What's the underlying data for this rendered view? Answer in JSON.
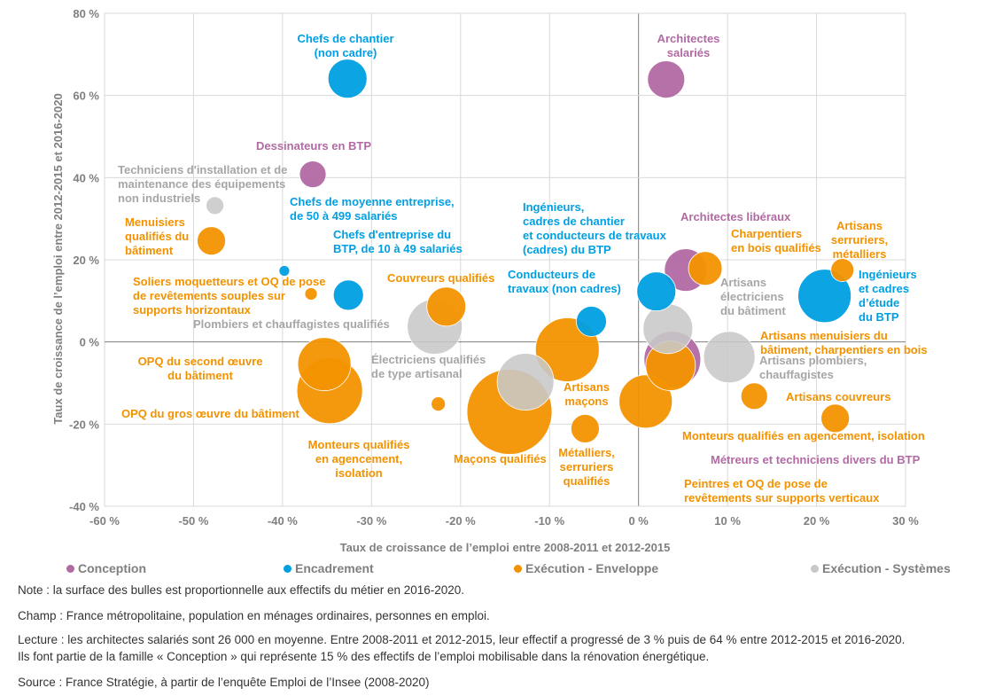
{
  "chart_data": {
    "type": "scatter",
    "xlabel": "Taux de croissance de l’emploi entre 2008-2011 et 2012-2015",
    "ylabel": "Taux de croissance de l’emploi entre 2012-2015 et 2016-2020",
    "xlim": [
      -60,
      30
    ],
    "ylim": [
      -40,
      80
    ],
    "xticks": [
      "-60 %",
      "-50 %",
      "-40 %",
      "-30 %",
      "-20 %",
      "-10 %",
      "0 %",
      "10 %",
      "20 %",
      "30 %"
    ],
    "yticks": [
      "80 %",
      "60 %",
      "40 %",
      "20 %",
      "0 %",
      "-20 %",
      "-40 %"
    ],
    "grid": true,
    "legend_position": "bottom",
    "colors": {
      "Conception": "#b26aa3",
      "Encadrement": "#009fe3",
      "Exécution - Enveloppe": "#f39200",
      "Exécution - Systèmes": "#c8c8c8"
    },
    "series": [
      {
        "name": "Conception",
        "points": [
          {
            "label": "Architectes\nsalariés",
            "x": 3.1,
            "y": 63.9,
            "size": 21
          },
          {
            "label": "Dessinateurs en BTP",
            "x": -36.6,
            "y": 40.8,
            "size": 15
          },
          {
            "label": "Architectes libéraux",
            "x": 5.3,
            "y": 17.5,
            "size": 24
          },
          {
            "label": "Métreurs et techniciens divers du BTP",
            "x": 3.8,
            "y": -4.3,
            "size": 32
          }
        ]
      },
      {
        "name": "Encadrement",
        "points": [
          {
            "label": "Chefs de chantier\n(non cadre)",
            "x": -32.7,
            "y": 64.1,
            "size": 22
          },
          {
            "label": "Chefs de moyenne entreprise,\nde 50 à 499 salariés",
            "x": -39.8,
            "y": 17.3,
            "size": 6
          },
          {
            "label": "Chefs d'entreprise du\nBTP, de 10 à 49 salariés",
            "x": -32.6,
            "y": 11.4,
            "size": 17
          },
          {
            "label": "Conducteurs de\ntravaux (non cadres)",
            "x": -5.3,
            "y": 5.0,
            "size": 17
          },
          {
            "label": "Ingénieurs,\ncadres de chantier\net conducteurs de travaux\n(cadres) du BTP",
            "x": 2.0,
            "y": 12.3,
            "size": 22
          },
          {
            "label": "Ingénieurs\net cadres\nd’étude\ndu BTP",
            "x": 20.9,
            "y": 11.2,
            "size": 30
          }
        ]
      },
      {
        "name": "Exécution - Enveloppe",
        "points": [
          {
            "label": "Menuisiers\nqualifiés du\nbâtiment",
            "x": -48.0,
            "y": 24.6,
            "size": 16
          },
          {
            "label": "Soliers moquetteurs et OQ de pose\nde revêtements souples sur\nsupports horizontaux",
            "x": -36.8,
            "y": 11.7,
            "size": 7
          },
          {
            "label": "Couvreurs qualifiés",
            "x": -21.6,
            "y": 8.6,
            "size": 22
          },
          {
            "label": "Charpentiers\nen bois qualifiés",
            "x": 7.5,
            "y": 17.9,
            "size": 19
          },
          {
            "label": "Artisans\nserruriers,\nmétalliers",
            "x": 22.9,
            "y": 17.5,
            "size": 13
          },
          {
            "label": "Artisans menuisiers du\nbâtiment, charpentiers en bois",
            "x": 3.6,
            "y": -5.8,
            "size": 28
          },
          {
            "label": "Artisans\nmaçons",
            "x": -8.0,
            "y": -1.9,
            "size": 36
          },
          {
            "label": "Artisans couvreurs",
            "x": 22.1,
            "y": -18.6,
            "size": 16
          },
          {
            "label": "Monteurs qualifiés en agencement, isolation",
            "x": 13.0,
            "y": -13.2,
            "size": 15
          },
          {
            "label": "Peintres et OQ de pose de\nrevêtements sur supports verticaux",
            "x": 0.8,
            "y": -14.5,
            "size": 30
          },
          {
            "label": "Métalliers,\nserruriers\nqualifiés",
            "x": -6.0,
            "y": -21.1,
            "size": 16
          },
          {
            "label": "Maçons qualifiés",
            "x": -14.5,
            "y": -17.0,
            "size": 48
          },
          {
            "label": "OPQ du gros œuvre du bâtiment",
            "x": -34.7,
            "y": -11.9,
            "size": 37
          },
          {
            "label": "OPQ du second œuvre\ndu bâtiment",
            "x": -35.3,
            "y": -5.4,
            "size": 30
          },
          {
            "label": "Monteurs qualifiés\nen agencement,\nisolation",
            "x": -22.5,
            "y": -15.1,
            "size": 8
          }
        ]
      },
      {
        "name": "Exécution - Systèmes",
        "points": [
          {
            "label": "Techniciens d'installation et de\nmaintenance des équipements\nnon industriels",
            "x": -47.6,
            "y": 33.2,
            "size": 10
          },
          {
            "label": "Plombiers et chauffagistes qualifiés",
            "x": -22.9,
            "y": 3.7,
            "size": 31
          },
          {
            "label": "Artisans\nélectriciens\ndu bâtiment",
            "x": 3.3,
            "y": 3.2,
            "size": 28
          },
          {
            "label": "Artisans plombiers,\nchauffagistes",
            "x": 10.2,
            "y": -3.7,
            "size": 29
          },
          {
            "label": "Électriciens qualifiés\nde type artisanal",
            "x": -12.7,
            "y": -9.7,
            "size": 32
          }
        ]
      }
    ]
  },
  "notes": {
    "note": "Note : la surface des bulles est proportionnelle aux effectifs du métier en 2016-2020.",
    "champ": "Champ : France métropolitaine, population en ménages ordinaires, personnes en emploi.",
    "lecture_1": "Lecture : les architectes salariés sont 26 000 en moyenne. Entre 2008-2011 et 2012-2015, leur effectif a progressé de 3 % puis de 64 % entre 2012-2015 et 2016-2020.",
    "lecture_2": "Ils font partie de la famille « Conception » qui représente 15 % des effectifs de l’emploi mobilisable dans la rénovation énergétique.",
    "source": "Source : France Stratégie, à partir de l’enquête Emploi de l’Insee (2008-2020)"
  }
}
